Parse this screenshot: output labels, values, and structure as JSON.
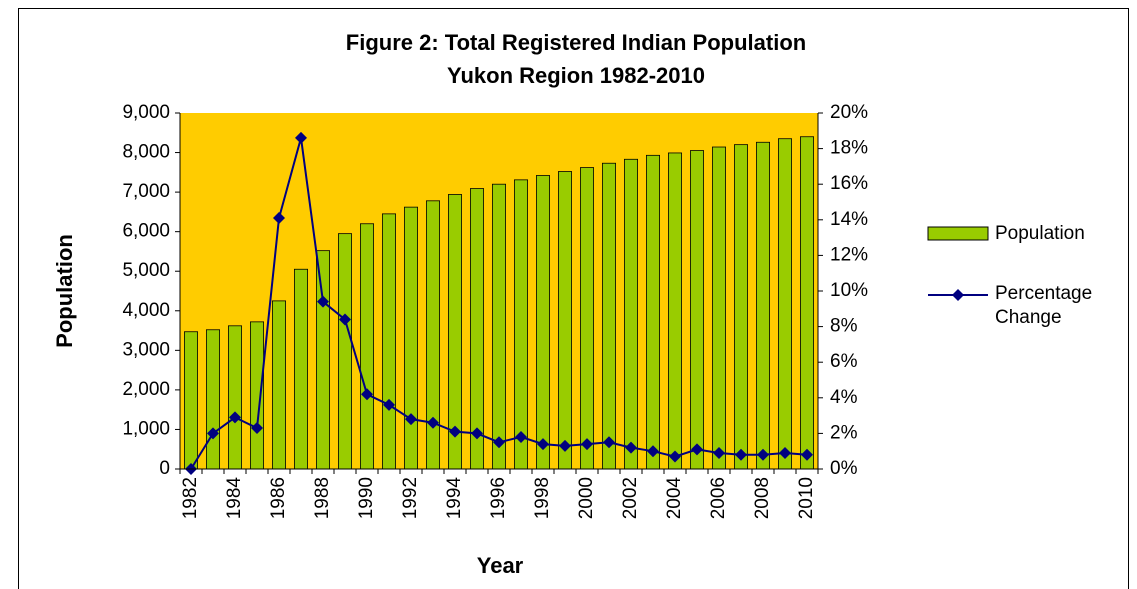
{
  "chart_data": {
    "type": "bar_line",
    "title": "Figure 2: Total Registered Indian Population",
    "subtitle": "Yukon Region 1982-2010",
    "x_label": "Year",
    "y_label": "Population",
    "categories": [
      "1982",
      null,
      "1984",
      null,
      "1986",
      null,
      "1988",
      null,
      "1990",
      null,
      "1992",
      null,
      "1994",
      null,
      "1996",
      null,
      "1998",
      null,
      "2000",
      null,
      "2002",
      null,
      "2004",
      null,
      "2006",
      null,
      "2008",
      null,
      "2010"
    ],
    "series": [
      {
        "name": "Population",
        "type": "bar",
        "color": "#99cc00",
        "values": [
          3470,
          3520,
          3620,
          3720,
          4250,
          5050,
          5520,
          5950,
          6200,
          6450,
          6620,
          6780,
          6940,
          7090,
          7200,
          7310,
          7420,
          7520,
          7620,
          7730,
          7830,
          7930,
          7990,
          8050,
          8140,
          8200,
          8260,
          8350,
          8400
        ]
      },
      {
        "name": "Percentage Change",
        "type": "line",
        "axis": "y2",
        "color": "#000080",
        "values": [
          0,
          2.0,
          2.9,
          2.3,
          14.1,
          18.6,
          9.4,
          8.4,
          4.2,
          3.6,
          2.8,
          2.6,
          2.1,
          2.0,
          1.5,
          1.8,
          1.4,
          1.3,
          1.4,
          1.5,
          1.2,
          1.0,
          0.7,
          1.1,
          0.9,
          0.8,
          0.8,
          0.9,
          0.8
        ]
      }
    ],
    "ylim": [
      0,
      9000
    ],
    "yticks": [
      0,
      {
        "value": 1000,
        "label": "1,000"
      },
      {
        "value": 2000,
        "label": "2,000"
      },
      {
        "value": 3000,
        "label": "3,000"
      },
      {
        "value": 4000,
        "label": "4,000"
      },
      {
        "value": 5000,
        "label": "5,000"
      },
      {
        "value": 6000,
        "label": "6,000"
      },
      {
        "value": 7000,
        "label": "7,000"
      },
      {
        "value": 8000,
        "label": "8,000"
      },
      {
        "value": 9000,
        "label": "9,000"
      }
    ],
    "y2lim": [
      0,
      20
    ],
    "y2ticks": [
      {
        "value": 0,
        "label": "0%"
      },
      {
        "value": 2,
        "label": "2%"
      },
      {
        "value": 4,
        "label": "4%"
      },
      {
        "value": 6,
        "label": "6%"
      },
      {
        "value": 8,
        "label": "8%"
      },
      {
        "value": 10,
        "label": "10%"
      },
      {
        "value": 12,
        "label": "12%"
      },
      {
        "value": 14,
        "label": "14%"
      },
      {
        "value": 16,
        "label": "16%"
      },
      {
        "value": 18,
        "label": "18%"
      },
      {
        "value": 20,
        "label": "20%"
      }
    ],
    "plot_background": "#ffcc00",
    "legend": "right"
  }
}
